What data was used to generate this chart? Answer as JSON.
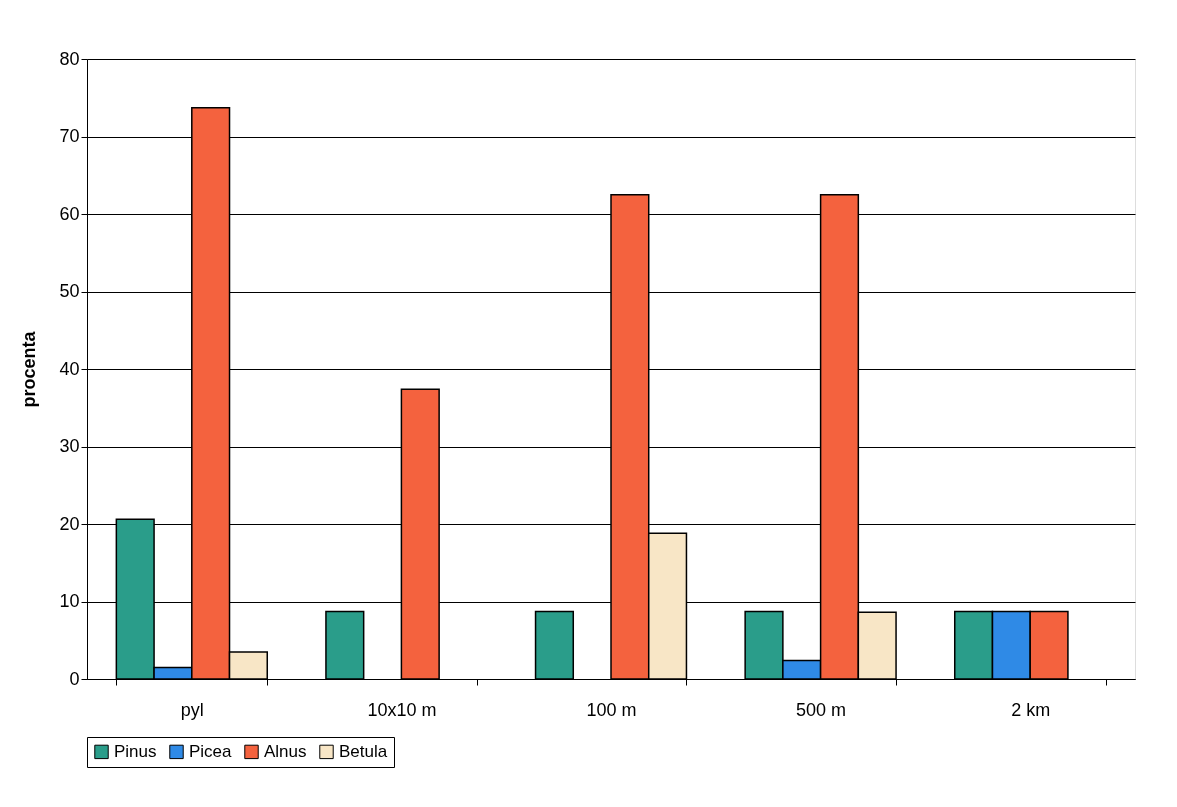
{
  "chart_data": {
    "type": "bar",
    "ylabel": "procenta",
    "categories": [
      "pyl",
      "10x10 m",
      "100 m",
      "500 m",
      "2 km"
    ],
    "series": [
      {
        "name": "Pinus",
        "color": "#2a9d8a",
        "values": [
          20.6,
          8.7,
          8.7,
          8.7,
          8.7
        ]
      },
      {
        "name": "Picea",
        "color": "#2f8ae6",
        "values": [
          1.5,
          null,
          null,
          2.4,
          8.7
        ]
      },
      {
        "name": "Alnus",
        "color": "#f4623e",
        "values": [
          73.7,
          37.4,
          62.5,
          62.5,
          8.7
        ]
      },
      {
        "name": "Betula",
        "color": "#f8e6c6",
        "values": [
          3.5,
          null,
          18.8,
          8.6,
          null
        ]
      }
    ],
    "ylim": [
      0,
      80
    ],
    "yticks": [
      0,
      10,
      20,
      30,
      40,
      50,
      60,
      70,
      80
    ],
    "grid": "y",
    "legend": "bottom"
  }
}
